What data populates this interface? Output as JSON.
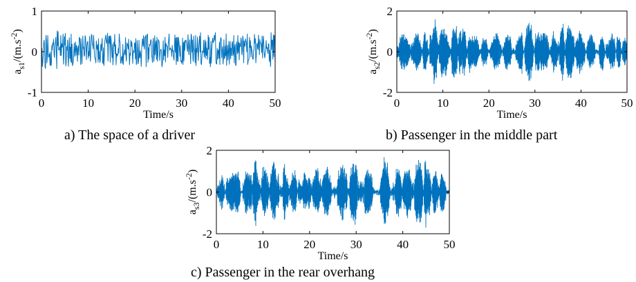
{
  "colors": {
    "line": "#0072BD",
    "axes": "#000000",
    "background": "#ffffff"
  },
  "captions": [
    "a) The space of a driver",
    "b) Passenger in the middle part",
    "c) Passenger in the rear overhang"
  ],
  "chart_data": [
    {
      "type": "line",
      "title": "",
      "xlabel": "Time/s",
      "ylabel": {
        "base": "a",
        "sub": "s1",
        "unit_prefix": "/(m.s",
        "unit_sup": "-2",
        "unit_suffix": ")"
      },
      "xlim": [
        0,
        50
      ],
      "ylim": [
        -1,
        1
      ],
      "xticks": [
        "0",
        "10",
        "20",
        "30",
        "40",
        "50"
      ],
      "yticks": [
        "-1",
        "0",
        "1"
      ],
      "grid": false,
      "series": [
        {
          "x_range": [
            0,
            50
          ],
          "envelope": [
            0.52,
            0.5,
            0.5,
            0.5,
            0.5,
            0.5,
            0.42,
            0.42,
            0.42,
            0.38,
            0.4,
            0.38,
            0.42,
            0.45,
            0.45,
            0.42,
            0.42,
            0.42,
            0.45,
            0.4,
            0.42,
            0.45,
            0.45,
            0.42,
            0.45,
            0.45,
            0.42,
            0.42,
            0.42,
            0.42,
            0.42,
            0.42,
            0.42,
            0.42,
            0.45,
            0.42,
            0.45,
            0.45,
            0.42,
            0.42,
            0.42,
            0.42,
            0.42,
            0.42,
            0.42,
            0.42,
            0.42,
            0.42,
            0.4,
            0.55
          ]
        }
      ]
    },
    {
      "type": "line",
      "title": "",
      "xlabel": "Time/s",
      "ylabel": {
        "base": "a",
        "sub": "s2",
        "unit_prefix": "/(m.s",
        "unit_sup": "-2",
        "unit_suffix": ")"
      },
      "xlim": [
        0,
        50
      ],
      "ylim": [
        -2,
        2
      ],
      "xticks": [
        "0",
        "10",
        "20",
        "30",
        "40",
        "50"
      ],
      "yticks": [
        "-2",
        "0",
        "2"
      ],
      "grid": false,
      "series": [
        {
          "x_range": [
            0,
            50
          ],
          "envelope": [
            0.9,
            0.9,
            0.85,
            0.9,
            1.0,
            1.1,
            1.05,
            1.3,
            1.7,
            1.5,
            1.2,
            1.25,
            1.5,
            1.45,
            1.3,
            1.1,
            0.9,
            0.9,
            0.8,
            0.75,
            0.8,
            0.95,
            0.95,
            1.0,
            0.85,
            0.8,
            1.0,
            1.3,
            1.55,
            1.6,
            1.5,
            1.2,
            1.0,
            0.9,
            1.05,
            1.3,
            1.5,
            1.4,
            1.2,
            1.1,
            1.0,
            0.9,
            0.9,
            1.0,
            1.05,
            1.0,
            0.95,
            0.9,
            0.85,
            0.8
          ]
        }
      ]
    },
    {
      "type": "line",
      "title": "",
      "xlabel": "Time/s",
      "ylabel": {
        "base": "a",
        "sub": "s3",
        "unit_prefix": "/(m.s",
        "unit_sup": "-2",
        "unit_suffix": ")"
      },
      "xlim": [
        0,
        50
      ],
      "ylim": [
        -2,
        2
      ],
      "xticks": [
        "0",
        "10",
        "20",
        "30",
        "40",
        "50"
      ],
      "yticks": [
        "-2",
        "0",
        "2"
      ],
      "grid": false,
      "series": [
        {
          "x_range": [
            0,
            50
          ],
          "envelope": [
            0.85,
            0.9,
            0.9,
            0.95,
            1.1,
            1.2,
            1.3,
            1.6,
            1.7,
            1.5,
            1.3,
            1.4,
            1.6,
            1.6,
            1.4,
            1.2,
            1.1,
            1.0,
            1.0,
            1.05,
            1.1,
            1.2,
            1.3,
            1.25,
            1.2,
            1.2,
            1.25,
            1.4,
            1.5,
            1.6,
            1.5,
            1.3,
            1.1,
            1.0,
            1.1,
            1.3,
            1.7,
            1.6,
            1.3,
            1.2,
            1.2,
            1.3,
            1.5,
            1.75,
            1.85,
            1.4,
            1.2,
            1.1,
            1.0,
            0.9
          ]
        }
      ]
    }
  ]
}
